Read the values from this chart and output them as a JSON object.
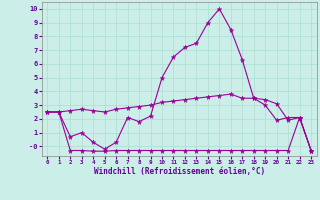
{
  "background_color": "#cbeee8",
  "grid_color": "#aaddcc",
  "line_color": "#990099",
  "xlabel": "Windchill (Refroidissement éolien,°C)",
  "xlabel_color": "#660099",
  "tick_color": "#660099",
  "xlim": [
    -0.5,
    23.5
  ],
  "ylim": [
    -0.7,
    10.5
  ],
  "yticks": [
    0,
    1,
    2,
    3,
    4,
    5,
    6,
    7,
    8,
    9,
    10
  ],
  "ytick_labels": [
    "-0",
    "1",
    "2",
    "3",
    "4",
    "5",
    "6",
    "7",
    "8",
    "9",
    "10"
  ],
  "xticks": [
    0,
    1,
    2,
    3,
    4,
    5,
    6,
    7,
    8,
    9,
    10,
    11,
    12,
    13,
    14,
    15,
    16,
    17,
    18,
    19,
    20,
    21,
    22,
    23
  ],
  "series": [
    {
      "x": [
        0,
        1,
        2,
        3,
        4,
        5,
        6,
        7,
        8,
        9,
        10,
        11,
        12,
        13,
        14,
        15,
        16,
        17,
        18,
        19,
        20,
        21,
        22,
        23
      ],
      "y": [
        2.5,
        2.5,
        0.7,
        1.0,
        0.3,
        -0.2,
        0.3,
        2.1,
        1.8,
        2.2,
        5.0,
        6.5,
        7.2,
        7.5,
        9.0,
        10.0,
        8.5,
        6.3,
        3.5,
        3.0,
        1.9,
        2.1,
        2.1,
        -0.3
      ]
    },
    {
      "x": [
        0,
        1,
        2,
        3,
        4,
        5,
        6,
        7,
        8,
        9,
        10,
        11,
        12,
        13,
        14,
        15,
        16,
        17,
        18,
        19,
        20,
        21,
        22,
        23
      ],
      "y": [
        2.5,
        2.5,
        2.6,
        2.7,
        2.6,
        2.5,
        2.7,
        2.8,
        2.9,
        3.0,
        3.2,
        3.3,
        3.4,
        3.5,
        3.6,
        3.7,
        3.8,
        3.5,
        3.5,
        3.4,
        3.1,
        1.9,
        2.1,
        -0.3
      ]
    },
    {
      "x": [
        0,
        1,
        2,
        3,
        4,
        5,
        6,
        7,
        8,
        9,
        10,
        11,
        12,
        13,
        14,
        15,
        16,
        17,
        18,
        19,
        20,
        21,
        22,
        23
      ],
      "y": [
        2.5,
        2.5,
        -0.3,
        -0.3,
        -0.35,
        -0.35,
        -0.3,
        -0.3,
        -0.3,
        -0.3,
        -0.3,
        -0.3,
        -0.3,
        -0.3,
        -0.3,
        -0.3,
        -0.3,
        -0.3,
        -0.3,
        -0.3,
        -0.3,
        -0.3,
        2.1,
        -0.3
      ]
    }
  ]
}
